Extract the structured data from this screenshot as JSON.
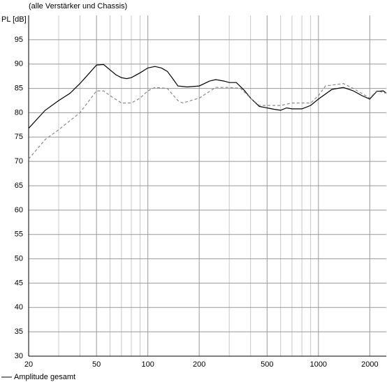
{
  "chart_data": {
    "type": "line",
    "subtitle": "(alle Verstärker und Chassis)",
    "y_label": "PL [dB]",
    "xscale": "log",
    "xlim": [
      20,
      2500
    ],
    "ylim": [
      30,
      100
    ],
    "xticks": [
      20,
      50,
      100,
      200,
      500,
      1000,
      2000
    ],
    "xminor": [
      30,
      40,
      60,
      70,
      80,
      90,
      300,
      400,
      600,
      700,
      800,
      900
    ],
    "yticks": [
      30,
      35,
      40,
      45,
      50,
      55,
      60,
      65,
      70,
      75,
      80,
      85,
      90,
      95
    ],
    "grid": true,
    "legend": "bottom-left",
    "series": [
      {
        "name": "Amplitude gesamt",
        "color": "#000000",
        "dash": false,
        "x": [
          20,
          25,
          30,
          35,
          40,
          45,
          50,
          55,
          60,
          65,
          70,
          75,
          80,
          90,
          100,
          110,
          120,
          130,
          140,
          150,
          170,
          200,
          230,
          250,
          280,
          300,
          330,
          370,
          400,
          450,
          500,
          550,
          600,
          650,
          700,
          800,
          900,
          1000,
          1200,
          1400,
          1600,
          1800,
          2000,
          2200,
          2400,
          2500
        ],
        "values": [
          76.8,
          80.5,
          82.5,
          84,
          86,
          88,
          89.8,
          89.9,
          88.8,
          87.8,
          87.2,
          87,
          87.2,
          88.2,
          89.2,
          89.5,
          89.2,
          88.5,
          87,
          85.5,
          85.3,
          85.5,
          86.5,
          86.8,
          86.5,
          86.2,
          86.2,
          84.5,
          83,
          81.3,
          81,
          80.7,
          80.5,
          81,
          80.8,
          80.8,
          81.5,
          82.8,
          84.8,
          85.2,
          84.5,
          83.5,
          82.8,
          84.4,
          84.5,
          84
        ]
      },
      {
        "color": "#888888",
        "dash": true,
        "x": [
          20,
          25,
          30,
          40,
          50,
          55,
          60,
          70,
          80,
          90,
          100,
          110,
          130,
          150,
          160,
          200,
          250,
          300,
          350,
          400,
          450,
          500,
          600,
          700,
          800,
          900,
          1000,
          1100,
          1400,
          1600,
          2000,
          2200,
          2500
        ],
        "values": [
          70.5,
          74.5,
          76.5,
          80,
          84.5,
          84.5,
          83.5,
          82,
          82,
          83,
          84.5,
          85.2,
          85,
          82.5,
          82,
          83,
          85.2,
          85.2,
          85,
          83,
          81.5,
          81.5,
          81.5,
          82,
          82,
          82,
          83.5,
          85.5,
          86,
          85,
          83,
          84.5,
          84
        ]
      }
    ]
  }
}
